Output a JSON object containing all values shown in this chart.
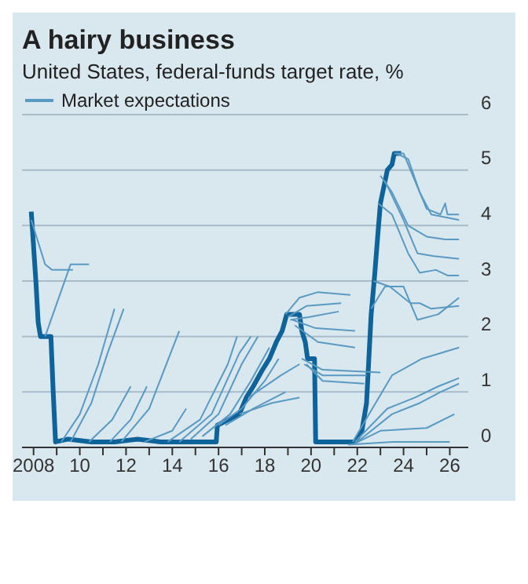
{
  "chart_data": {
    "type": "line",
    "title": "A hairy business",
    "subtitle": "United States, federal-funds target rate, %",
    "xlim": [
      2007.5,
      2026.8
    ],
    "xticks": [
      2008,
      {
        "value": 2009,
        "label": null
      },
      {
        "value": 2010,
        "label": "10"
      },
      {
        "value": 2011,
        "label": null
      },
      {
        "value": 2012,
        "label": "12"
      },
      {
        "value": 2013,
        "label": null
      },
      {
        "value": 2014,
        "label": "14"
      },
      {
        "value": 2015,
        "label": null
      },
      {
        "value": 2016,
        "label": "16"
      },
      {
        "value": 2017,
        "label": null
      },
      {
        "value": 2018,
        "label": "18"
      },
      {
        "value": 2019,
        "label": null
      },
      {
        "value": 2020,
        "label": "20"
      },
      {
        "value": 2021,
        "label": null
      },
      {
        "value": 2022,
        "label": "22"
      },
      {
        "value": 2023,
        "label": null
      },
      {
        "value": 2024,
        "label": "24"
      },
      {
        "value": 2025,
        "label": null
      },
      {
        "value": 2026,
        "label": "26"
      }
    ],
    "ylim": [
      0,
      6
    ],
    "yticks": [
      0,
      1,
      2,
      3,
      4,
      5,
      6
    ],
    "grid": "y",
    "legend": "top left",
    "marker": "none",
    "line_style": "solid",
    "series": [
      {
        "color": "#0d639a",
        "x": [
          2007.9,
          2008.1,
          2008.2,
          2008.3,
          2008.75,
          2008.85,
          2008.95,
          2009.5,
          2010.5,
          2011.5,
          2012.5,
          2013.5,
          2014.5,
          2015.5,
          2015.9,
          2015.95,
          2016.9,
          2017.2,
          2017.5,
          2017.9,
          2018.2,
          2018.5,
          2018.75,
          2018.95,
          2019.5,
          2019.6,
          2019.75,
          2019.85,
          2020.15,
          2020.2,
          2021.9,
          2022.2,
          2022.4,
          2022.5,
          2022.6,
          2022.75,
          2022.9,
          2023.0,
          2023.1,
          2023.3,
          2023.5,
          2023.6,
          2023.9
        ],
        "values": [
          4.25,
          3.0,
          2.25,
          2.0,
          2.0,
          1.0,
          0.1,
          0.15,
          0.1,
          0.1,
          0.15,
          0.1,
          0.1,
          0.1,
          0.1,
          0.4,
          0.6,
          0.9,
          1.1,
          1.4,
          1.6,
          1.9,
          2.1,
          2.4,
          2.4,
          2.1,
          1.9,
          1.6,
          1.6,
          0.1,
          0.1,
          0.3,
          0.8,
          1.6,
          2.4,
          3.1,
          3.9,
          4.4,
          4.6,
          5.0,
          5.1,
          5.3,
          5.3
        ]
      },
      {
        "name": "Market expectations",
        "color": "#5a9ac2",
        "x": [
          2007.9,
          2008.5,
          2008.8,
          2009.7
        ],
        "values": [
          4.1,
          3.3,
          3.2,
          3.2
        ]
      },
      {
        "color": "#5a9ac2",
        "x": [
          2008.5,
          2009.6,
          2010.4
        ],
        "values": [
          2.0,
          3.3,
          3.3
        ]
      },
      {
        "color": "#5a9ac2",
        "x": [
          2009.2,
          2010.0,
          2010.8,
          2011.5
        ],
        "values": [
          0.1,
          0.6,
          1.5,
          2.5
        ]
      },
      {
        "color": "#5a9ac2",
        "x": [
          2009.6,
          2010.5,
          2011.2,
          2011.9
        ],
        "values": [
          0.1,
          0.8,
          1.7,
          2.5
        ]
      },
      {
        "color": "#5a9ac2",
        "x": [
          2010.4,
          2011.4,
          2012.2
        ],
        "values": [
          0.1,
          0.5,
          1.1
        ]
      },
      {
        "color": "#5a9ac2",
        "x": [
          2011.3,
          2012.2,
          2012.9
        ],
        "values": [
          0.1,
          0.5,
          1.1
        ]
      },
      {
        "color": "#5a9ac2",
        "x": [
          2011.8,
          2013.0,
          2014.3
        ],
        "values": [
          0.1,
          0.7,
          2.1
        ]
      },
      {
        "color": "#5a9ac2",
        "x": [
          2012.8,
          2014.0,
          2014.6
        ],
        "values": [
          0.1,
          0.3,
          0.7
        ]
      },
      {
        "color": "#5a9ac2",
        "x": [
          2013.8,
          2015.2,
          2016.4,
          2016.8
        ],
        "values": [
          0.1,
          0.5,
          1.5,
          2.0
        ]
      },
      {
        "color": "#5a9ac2",
        "x": [
          2014.3,
          2015.7,
          2016.9,
          2017.4
        ],
        "values": [
          0.1,
          0.6,
          1.7,
          2.0
        ]
      },
      {
        "color": "#5a9ac2",
        "x": [
          2014.8,
          2016.0,
          2017.0,
          2017.7
        ],
        "values": [
          0.15,
          0.6,
          1.5,
          2.0
        ]
      },
      {
        "color": "#5a9ac2",
        "x": [
          2015.3,
          2016.5,
          2017.4,
          2018.2
        ],
        "values": [
          0.2,
          0.6,
          1.2,
          1.8
        ]
      },
      {
        "color": "#5a9ac2",
        "x": [
          2016.0,
          2017.0,
          2018.0,
          2018.6
        ],
        "values": [
          0.4,
          0.7,
          1.2,
          1.6
        ]
      },
      {
        "color": "#5a9ac2",
        "x": [
          2016.3,
          2017.5,
          2018.9
        ],
        "values": [
          0.4,
          0.7,
          1.0
        ]
      },
      {
        "color": "#5a9ac2",
        "x": [
          2016.9,
          2018.3,
          2019.5
        ],
        "values": [
          0.6,
          0.8,
          0.9
        ]
      },
      {
        "color": "#5a9ac2",
        "x": [
          2017.3,
          2018.7,
          2019.5
        ],
        "values": [
          0.9,
          1.3,
          1.5
        ]
      },
      {
        "color": "#5a9ac2",
        "x": [
          2018.9,
          2019.5,
          2020.3,
          2021.7
        ],
        "values": [
          2.4,
          2.7,
          2.8,
          2.75
        ]
      },
      {
        "color": "#5a9ac2",
        "x": [
          2019.0,
          2019.8,
          2021.3
        ],
        "values": [
          2.35,
          2.55,
          2.6
        ]
      },
      {
        "color": "#5a9ac2",
        "x": [
          2019.1,
          2019.9,
          2021.2
        ],
        "values": [
          2.3,
          2.35,
          2.45
        ]
      },
      {
        "color": "#5a9ac2",
        "x": [
          2019.2,
          2020.2,
          2021.9
        ],
        "values": [
          2.3,
          2.15,
          2.1
        ]
      },
      {
        "color": "#5a9ac2",
        "x": [
          2019.3,
          2020.3,
          2021.9
        ],
        "values": [
          2.2,
          1.9,
          1.8
        ]
      },
      {
        "color": "#5a9ac2",
        "x": [
          2019.6,
          2020.5,
          2023.0
        ],
        "values": [
          1.6,
          1.4,
          1.35
        ]
      },
      {
        "color": "#5a9ac2",
        "x": [
          2019.7,
          2020.5,
          2022.4
        ],
        "values": [
          1.5,
          1.3,
          1.3
        ]
      },
      {
        "color": "#5a9ac2",
        "x": [
          2019.8,
          2020.5,
          2022.3
        ],
        "values": [
          1.5,
          1.2,
          1.15
        ]
      },
      {
        "color": "#5a9ac2",
        "x": [
          2023.6,
          2024.0,
          2024.5,
          2025.0,
          2025.6,
          2025.8,
          2025.9,
          2026.4
        ],
        "values": [
          5.3,
          5.3,
          4.8,
          4.3,
          4.2,
          4.4,
          4.2,
          4.2
        ]
      },
      {
        "color": "#5a9ac2",
        "x": [
          2023.7,
          2024.2,
          2024.7,
          2025.2,
          2026.4
        ],
        "values": [
          5.3,
          5.2,
          4.6,
          4.2,
          4.1
        ]
      },
      {
        "color": "#5a9ac2",
        "x": [
          2023.0,
          2023.5,
          2024.2,
          2025.0,
          2025.8,
          2026.4
        ],
        "values": [
          4.9,
          4.6,
          4.0,
          3.8,
          3.75,
          3.75
        ]
      },
      {
        "color": "#5a9ac2",
        "x": [
          2023.2,
          2024.0,
          2024.6,
          2025.3,
          2026.4
        ],
        "values": [
          4.8,
          4.1,
          3.5,
          3.45,
          3.4
        ]
      },
      {
        "color": "#5a9ac2",
        "x": [
          2022.9,
          2023.5,
          2024.2,
          2024.7,
          2025.4,
          2025.9,
          2026.4
        ],
        "values": [
          4.4,
          4.2,
          3.5,
          3.15,
          3.2,
          3.1,
          3.1
        ]
      },
      {
        "color": "#5a9ac2",
        "x": [
          2022.7,
          2023.4,
          2024.3,
          2024.6,
          2025.5,
          2026.4
        ],
        "values": [
          3.0,
          2.9,
          2.6,
          2.3,
          2.4,
          2.7
        ]
      },
      {
        "color": "#5a9ac2",
        "x": [
          2022.6,
          2023.2,
          2024.0,
          2024.3,
          2024.7,
          2025.2,
          2026.4
        ],
        "values": [
          2.5,
          2.9,
          2.9,
          2.6,
          2.6,
          2.5,
          2.55
        ]
      },
      {
        "color": "#5a9ac2",
        "x": [
          2021.8,
          2023.5,
          2024.8,
          2026.4
        ],
        "values": [
          0.1,
          1.3,
          1.6,
          1.8
        ]
      },
      {
        "color": "#5a9ac2",
        "x": [
          2021.9,
          2023.3,
          2024.5,
          2025.5,
          2026.4
        ],
        "values": [
          0.1,
          0.7,
          0.9,
          1.1,
          1.25
        ]
      },
      {
        "color": "#5a9ac2",
        "x": [
          2022.0,
          2023.5,
          2024.7,
          2025.6,
          2026.4
        ],
        "values": [
          0.1,
          0.6,
          0.8,
          1.0,
          1.15
        ]
      },
      {
        "color": "#5a9ac2",
        "x": [
          2021.8,
          2023.0,
          2025.0,
          2026.2
        ],
        "values": [
          0.05,
          0.3,
          0.35,
          0.6
        ]
      },
      {
        "color": "#5a9ac2",
        "x": [
          2021.6,
          2023.5,
          2026.0
        ],
        "values": [
          0.05,
          0.1,
          0.1
        ]
      }
    ]
  }
}
